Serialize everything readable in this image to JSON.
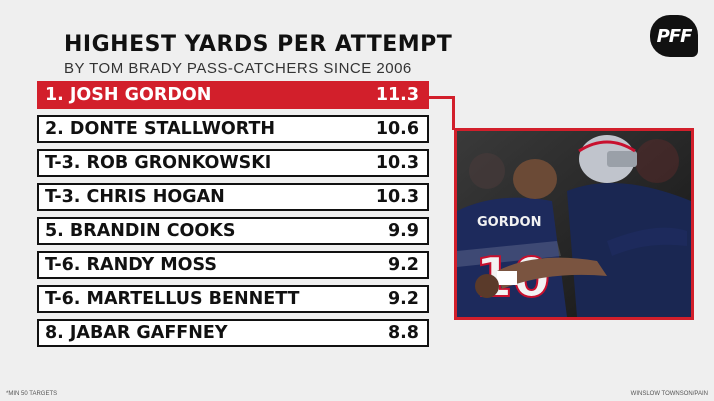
{
  "title": "HIGHEST YARDS PER ATTEMPT",
  "subtitle": "BY TOM BRADY PASS-CATCHERS SINCE 2006",
  "logo": "PFF",
  "rows": [
    {
      "name": "1. JOSH GORDON",
      "value": "11.3"
    },
    {
      "name": "2. DONTE STALLWORTH",
      "value": "10.6"
    },
    {
      "name": "T-3. ROB GRONKOWSKI",
      "value": "10.3"
    },
    {
      "name": "T-3. CHRIS HOGAN",
      "value": "10.3"
    },
    {
      "name": "5. BRANDIN COOKS",
      "value": "9.9"
    },
    {
      "name": "T-6. RANDY MOSS",
      "value": "9.2"
    },
    {
      "name": "T-6. MARTELLUS BENNETT",
      "value": "9.2"
    },
    {
      "name": "8. JABAR GAFFNEY",
      "value": "8.8"
    }
  ],
  "photo": {
    "jersey_name": "GORDON",
    "jersey_number": "10"
  },
  "footnote": "*MIN 50 TARGETS",
  "credit": "WINSLOW TOWNSON/PAIN",
  "colors": {
    "accent": "#d21f2b",
    "background": "#efefef",
    "text": "#111111"
  }
}
